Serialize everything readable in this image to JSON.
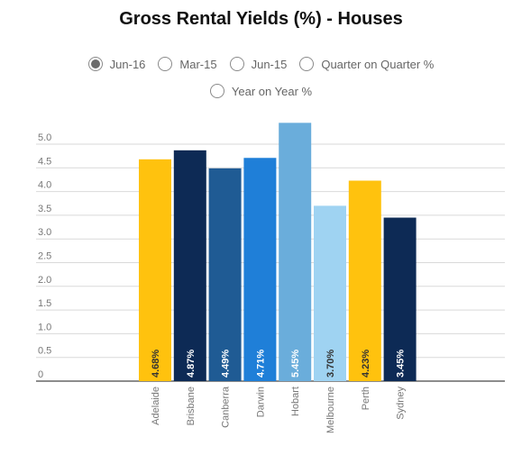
{
  "title": "Gross Rental Yields (%)  - Houses",
  "options": [
    {
      "label": "Jun-16",
      "selected": true
    },
    {
      "label": "Mar-15",
      "selected": false
    },
    {
      "label": "Jun-15",
      "selected": false
    },
    {
      "label": "Quarter on Quarter %",
      "selected": false
    },
    {
      "label": "Year on Year %",
      "selected": false
    }
  ],
  "chart_data": {
    "type": "bar",
    "categories": [
      "Adelaide",
      "Brisbane",
      "Canberra",
      "Darwin",
      "Hobart",
      "Melbourne",
      "Perth",
      "Sydney"
    ],
    "values": [
      4.68,
      4.87,
      4.49,
      4.71,
      5.45,
      3.7,
      4.23,
      3.45
    ],
    "data_labels": [
      "4.68%",
      "4.87%",
      "4.49%",
      "4.71%",
      "5.45%",
      "3.70%",
      "4.23%",
      "3.45%"
    ],
    "colors": [
      "#ffc20e",
      "#0d2a55",
      "#1f5b94",
      "#1f7fd8",
      "#6aaddb",
      "#9fd3f2",
      "#ffc20e",
      "#0d2a55"
    ],
    "label_colors": [
      "#333333",
      "#ffffff",
      "#ffffff",
      "#ffffff",
      "#ffffff",
      "#333333",
      "#333333",
      "#ffffff"
    ],
    "y_ticks": [
      "0",
      "0.5",
      "1.0",
      "1.5",
      "2.0",
      "2.5",
      "3.0",
      "3.5",
      "4.0",
      "4.5",
      "5.0"
    ],
    "ylim": [
      0,
      5.0
    ],
    "grid": true,
    "legend": "none"
  }
}
